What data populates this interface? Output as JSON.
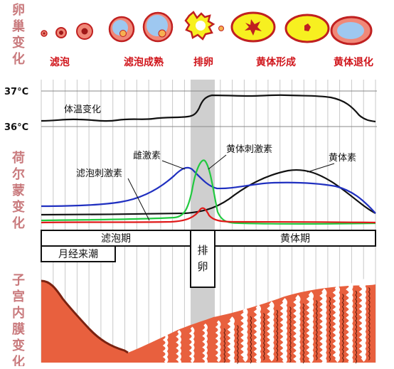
{
  "sections": {
    "ovary": "卵巢变化",
    "hormone": "荷尔蒙变化",
    "endometrium": "子宫内膜变化"
  },
  "ovary_stages": [
    "滤泡",
    "滤泡成熟",
    "排卵",
    "黄体形成",
    "黄体退化"
  ],
  "temperature": {
    "label_high": "37°C",
    "label_low": "36°C",
    "curve_label": "体温变化"
  },
  "hormones": {
    "estrogen": "雌激素",
    "lh": "黄体刺激素",
    "fsh": "滤泡刺激素",
    "progesterone": "黄体素"
  },
  "phases": {
    "follicular": "滤泡期",
    "ovulation": "排卵",
    "luteal": "黄体期",
    "menstruation": "月经来潮"
  },
  "colors": {
    "section_label": "#c97a7d",
    "stage_label": "#d0151b",
    "ovulation_band": "#cfcfcf",
    "estrogen": "#2030c0",
    "lh": "#22c940",
    "fsh": "#e01a1a",
    "progesterone": "#111111",
    "endometrium": "#e8603e",
    "endometrium_edge": "#7a2210",
    "yolk": "#f7f020",
    "follicle_blue": "#9ec8f0"
  }
}
